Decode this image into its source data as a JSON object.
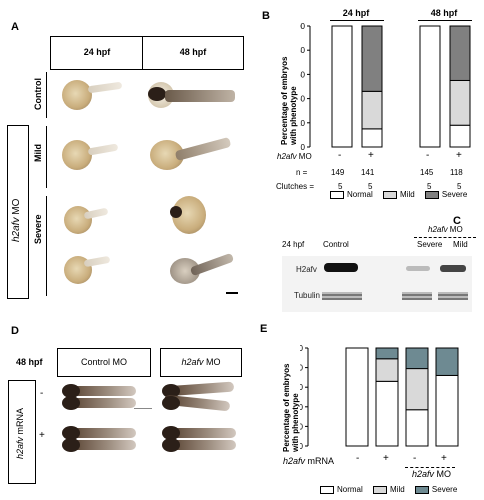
{
  "panels": {
    "a": "A",
    "b": "B",
    "c": "C",
    "d": "D",
    "e": "E"
  },
  "colors": {
    "normal": "#ffffff",
    "mild": "#d9d9d9",
    "severe": "#808080",
    "severe_e": "#6e8a92"
  },
  "panel_a": {
    "col_headers": [
      "24 hpf",
      "48 hpf"
    ],
    "row_labels": [
      "Control",
      "Mild",
      "Severe"
    ],
    "group_label_gene": "h2afv",
    "group_label_suffix": " MO"
  },
  "panel_b": {
    "col_headers": [
      "24 hpf",
      "48 hpf"
    ],
    "ylabel_line1": "Percentage of embryos",
    "ylabel_line2": "with phenotype",
    "y_ticks": [
      "0",
      "20",
      "40",
      "60",
      "80",
      "100"
    ],
    "row_mo_gene": "h2afv",
    "row_mo_suffix": " MO",
    "row_n": "n =",
    "row_clutches": "Clutches =",
    "mo_signs": [
      "-",
      "+",
      "-",
      "+"
    ],
    "n_values": [
      "149",
      "141",
      "145",
      "118"
    ],
    "clutch_values": [
      "5",
      "5",
      "5",
      "5"
    ],
    "legend": [
      "Normal",
      "Mild",
      "Severe"
    ]
  },
  "panel_c": {
    "timepoint": "24 hpf",
    "col_control": "Control",
    "mo_gene": "h2afv",
    "mo_suffix": " MO",
    "col_severe": "Severe",
    "col_mild": "Mild",
    "band_h2afv": "H2afv",
    "band_tubulin": "Tubulin"
  },
  "panel_d": {
    "timepoint": "48 hpf",
    "col_control": "Control MO",
    "col_mo_gene": "h2afv",
    "col_mo_suffix": " MO",
    "row_gene": "h2afv",
    "row_suffix": " mRNA",
    "row_signs": [
      "-",
      "+"
    ]
  },
  "panel_e": {
    "ylabel_line1": "Percentage of embryos",
    "ylabel_line2": "with phenotype",
    "y_ticks": [
      "0",
      "20",
      "40",
      "60",
      "80",
      "100"
    ],
    "row_gene": "h2afv",
    "row_suffix": " mRNA",
    "signs": [
      "-",
      "+",
      "-",
      "+"
    ],
    "mo_gene": "h2afv",
    "mo_suffix": " MO",
    "legend": [
      "Normal",
      "Mild",
      "Severe"
    ]
  },
  "chart_data": [
    {
      "type": "bar",
      "stacked": true,
      "panel": "B",
      "categories": [
        "24 hpf -",
        "24 hpf +",
        "48 hpf -",
        "48 hpf +"
      ],
      "series": [
        {
          "name": "Normal",
          "values": [
            100,
            15,
            100,
            18
          ]
        },
        {
          "name": "Mild",
          "values": [
            0,
            31,
            0,
            37
          ]
        },
        {
          "name": "Severe",
          "values": [
            0,
            54,
            0,
            45
          ]
        }
      ],
      "ylabel": "Percentage of embryos with phenotype",
      "ylim": [
        0,
        100
      ]
    },
    {
      "type": "bar",
      "stacked": true,
      "panel": "E",
      "categories": [
        "- / -",
        "+ / -",
        "- / +",
        "+ / +"
      ],
      "series": [
        {
          "name": "Normal",
          "values": [
            100,
            66,
            37,
            72
          ]
        },
        {
          "name": "Mild",
          "values": [
            0,
            23,
            42,
            0
          ]
        },
        {
          "name": "Severe",
          "values": [
            0,
            11,
            21,
            28
          ]
        }
      ],
      "ylabel": "Percentage of embryos with phenotype",
      "ylim": [
        0,
        100
      ]
    }
  ]
}
